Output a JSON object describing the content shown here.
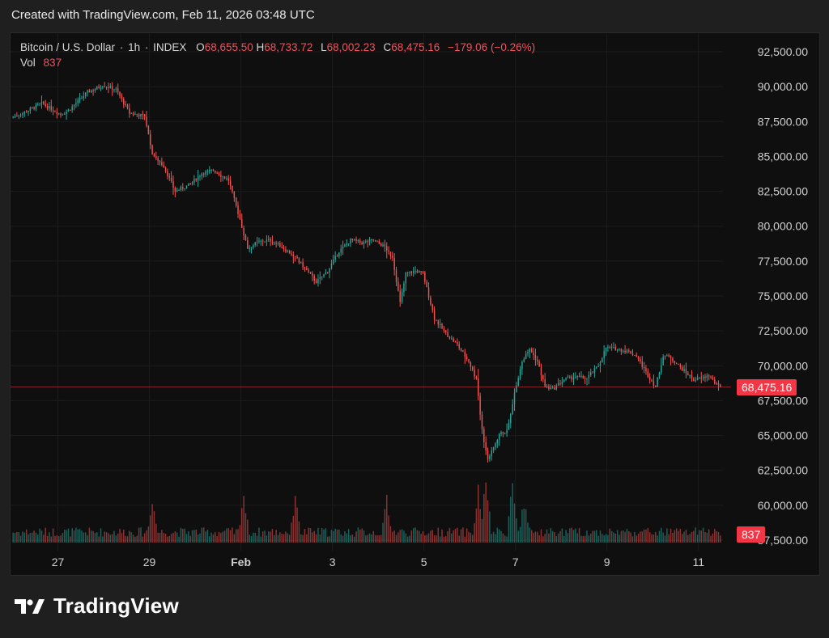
{
  "header": {
    "text": "Created with TradingView.com, Feb 11, 2026 03:48 UTC"
  },
  "legend": {
    "symbol": "Bitcoin / U.S. Dollar",
    "interval": "1h",
    "exchange": "INDEX",
    "open_label": "O",
    "open": "68,655.50",
    "high_label": "H",
    "high": "68,733.72",
    "low_label": "L",
    "low": "68,002.23",
    "close_label": "C",
    "close": "68,475.16",
    "change": "−179.06 (−0.26%)",
    "vol_label": "Vol",
    "vol": "837"
  },
  "badges": {
    "last_price": "68,475.16",
    "last_volume": "837"
  },
  "brand": {
    "name": "TradingView"
  },
  "colors": {
    "up": "#26a69a",
    "down": "#ef5350",
    "badge": "#f23645",
    "background": "#0f0f0f"
  },
  "chart_data": {
    "type": "candlestick",
    "ylim": [
      57000,
      93500
    ],
    "y_ticks": [
      "92,500.00",
      "90,000.00",
      "87,500.00",
      "85,000.00",
      "82,500.00",
      "80,000.00",
      "77,500.00",
      "75,000.00",
      "72,500.00",
      "70,000.00",
      "67,500.00",
      "65,000.00",
      "62,500.00",
      "60,000.00",
      "57,500.00"
    ],
    "y_tick_values": [
      92500,
      90000,
      87500,
      85000,
      82500,
      80000,
      77500,
      75000,
      72500,
      70000,
      67500,
      65000,
      62500,
      60000,
      57500
    ],
    "x_ticks": [
      "27",
      "29",
      "Feb",
      "3",
      "5",
      "7",
      "9",
      "11"
    ],
    "x_tick_times": [
      24,
      72,
      120,
      168,
      216,
      264,
      312,
      360
    ],
    "time_range": [
      0,
      372
    ],
    "last_price": 68475.16,
    "price_anchors": [
      [
        0,
        87800
      ],
      [
        6,
        88100
      ],
      [
        16,
        88800
      ],
      [
        26,
        88000
      ],
      [
        30,
        88300
      ],
      [
        40,
        89600
      ],
      [
        48,
        90100
      ],
      [
        55,
        89800
      ],
      [
        62,
        88100
      ],
      [
        70,
        87900
      ],
      [
        74,
        85200
      ],
      [
        80,
        84300
      ],
      [
        86,
        82500
      ],
      [
        94,
        83000
      ],
      [
        100,
        83800
      ],
      [
        106,
        84000
      ],
      [
        114,
        83300
      ],
      [
        120,
        80500
      ],
      [
        124,
        78400
      ],
      [
        130,
        78900
      ],
      [
        136,
        79000
      ],
      [
        142,
        78500
      ],
      [
        148,
        77900
      ],
      [
        154,
        77000
      ],
      [
        160,
        76000
      ],
      [
        166,
        76800
      ],
      [
        172,
        78200
      ],
      [
        178,
        79000
      ],
      [
        184,
        78800
      ],
      [
        190,
        79000
      ],
      [
        196,
        78500
      ],
      [
        200,
        77800
      ],
      [
        204,
        74500
      ],
      [
        207,
        76600
      ],
      [
        212,
        76800
      ],
      [
        216,
        76600
      ],
      [
        222,
        73400
      ],
      [
        228,
        72300
      ],
      [
        234,
        71500
      ],
      [
        240,
        70300
      ],
      [
        244,
        69000
      ],
      [
        246,
        66500
      ],
      [
        248,
        64600
      ],
      [
        250,
        63400
      ],
      [
        252,
        63800
      ],
      [
        256,
        65100
      ],
      [
        260,
        65300
      ],
      [
        264,
        68000
      ],
      [
        268,
        70400
      ],
      [
        272,
        71200
      ],
      [
        276,
        70300
      ],
      [
        280,
        68500
      ],
      [
        284,
        68300
      ],
      [
        290,
        69000
      ],
      [
        296,
        69200
      ],
      [
        302,
        69100
      ],
      [
        308,
        70000
      ],
      [
        312,
        71300
      ],
      [
        318,
        71200
      ],
      [
        324,
        71000
      ],
      [
        328,
        70700
      ],
      [
        334,
        69300
      ],
      [
        338,
        68500
      ],
      [
        342,
        70700
      ],
      [
        346,
        70600
      ],
      [
        350,
        70000
      ],
      [
        354,
        69500
      ],
      [
        358,
        69000
      ],
      [
        362,
        69100
      ],
      [
        366,
        69300
      ],
      [
        370,
        68600
      ],
      [
        372,
        68475
      ]
    ],
    "volume_peaks": [
      [
        73,
        0.72
      ],
      [
        121,
        0.75
      ],
      [
        148,
        0.7
      ],
      [
        196,
        0.72
      ],
      [
        244,
        0.8
      ],
      [
        248,
        1.0
      ],
      [
        262,
        0.9
      ],
      [
        268,
        0.65
      ]
    ],
    "price_ylabel": "",
    "xlabel": ""
  }
}
